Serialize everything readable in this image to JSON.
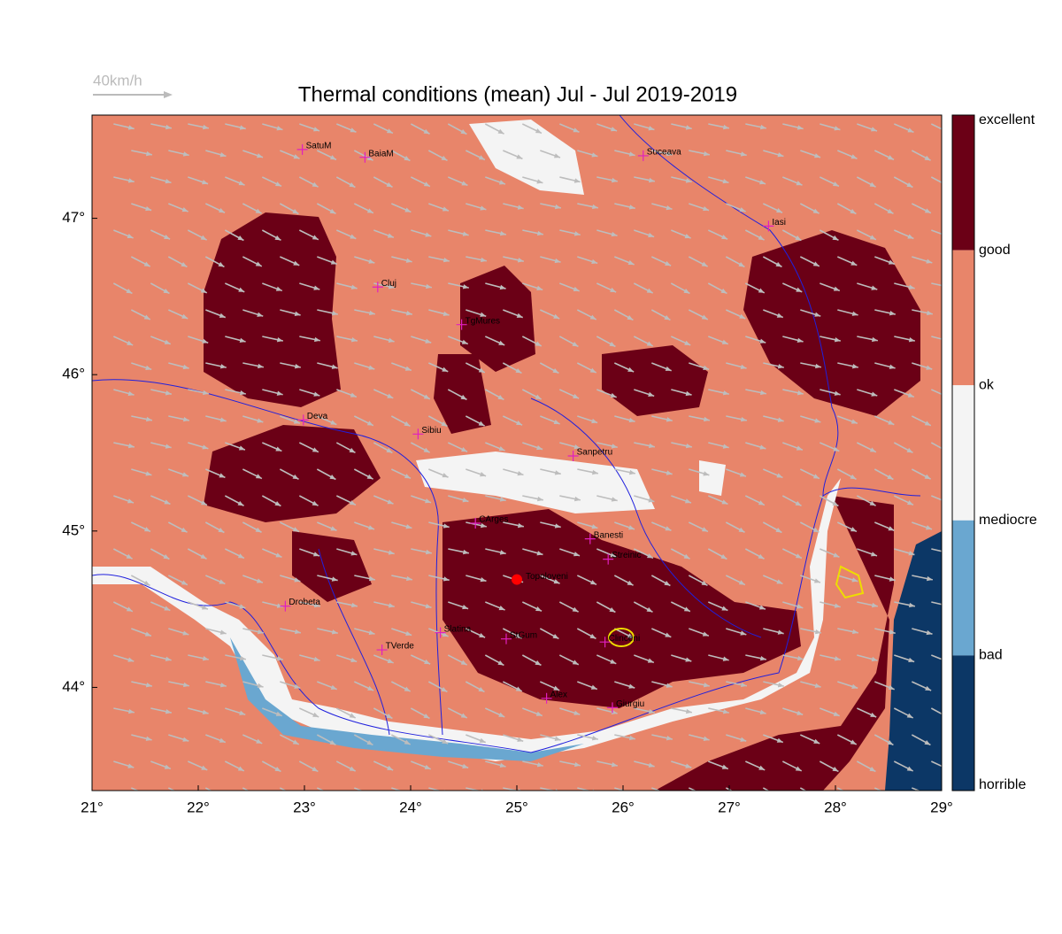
{
  "map": {
    "title": "Thermal conditions (mean) Jul - Jul  2019-2019",
    "wind_scale_label": "40km/h",
    "xlim": [
      21,
      29
    ],
    "ylim": [
      43.34,
      47.66
    ],
    "xticks": [
      {
        "value": 21,
        "label": "21°"
      },
      {
        "value": 22,
        "label": "22°"
      },
      {
        "value": 23,
        "label": "23°"
      },
      {
        "value": 24,
        "label": "24°"
      },
      {
        "value": 25,
        "label": "25°"
      },
      {
        "value": 26,
        "label": "26°"
      },
      {
        "value": 27,
        "label": "27°"
      },
      {
        "value": 28,
        "label": "28°"
      },
      {
        "value": 29,
        "label": "29°"
      }
    ],
    "yticks": [
      {
        "value": 44,
        "label": "44°"
      },
      {
        "value": 45,
        "label": "45°"
      },
      {
        "value": 46,
        "label": "46°"
      },
      {
        "value": 47,
        "label": "47°"
      }
    ],
    "colorbar": {
      "labels": [
        "excellent",
        "good",
        "ok",
        "mediocre",
        "bad",
        "horrible"
      ],
      "colors": [
        "#6b0016",
        "#e8856a",
        "#f4f4f4",
        "#6aa7d0",
        "#0c3766"
      ]
    },
    "cities": [
      {
        "name": "SatuM",
        "lon": 22.98,
        "lat": 47.44
      },
      {
        "name": "BaiaM",
        "lon": 23.57,
        "lat": 47.39
      },
      {
        "name": "Suceava",
        "lon": 26.19,
        "lat": 47.4
      },
      {
        "name": "Iasi",
        "lon": 27.37,
        "lat": 46.95
      },
      {
        "name": "Cluj",
        "lon": 23.69,
        "lat": 46.56
      },
      {
        "name": "TgMures",
        "lon": 24.48,
        "lat": 46.32
      },
      {
        "name": "Deva",
        "lon": 22.99,
        "lat": 45.71
      },
      {
        "name": "Sibiu",
        "lon": 24.07,
        "lat": 45.62
      },
      {
        "name": "Sanpetru",
        "lon": 25.53,
        "lat": 45.48
      },
      {
        "name": "CArges",
        "lon": 24.61,
        "lat": 45.05
      },
      {
        "name": "Banesti",
        "lon": 25.69,
        "lat": 44.95
      },
      {
        "name": "Streinic",
        "lon": 25.86,
        "lat": 44.82
      },
      {
        "name": "Drobeta",
        "lon": 22.82,
        "lat": 44.52
      },
      {
        "name": "Slatina",
        "lon": 24.28,
        "lat": 44.35
      },
      {
        "name": "StGum",
        "lon": 24.9,
        "lat": 44.31
      },
      {
        "name": "Clinceni",
        "lon": 25.83,
        "lat": 44.29
      },
      {
        "name": "TVerde",
        "lon": 23.73,
        "lat": 44.24
      },
      {
        "name": "Alex",
        "lon": 25.28,
        "lat": 43.93
      },
      {
        "name": "Giurgiu",
        "lon": 25.9,
        "lat": 43.87
      }
    ],
    "site": {
      "name": "Topoloveni",
      "lon": 25.0,
      "lat": 44.69
    }
  }
}
